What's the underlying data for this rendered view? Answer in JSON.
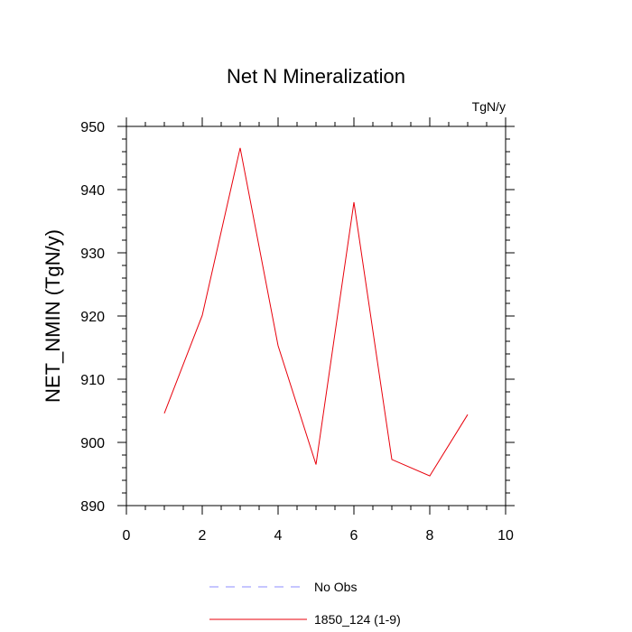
{
  "chart_data": {
    "type": "line",
    "title": "Net N Mineralization",
    "units": "TgN/y",
    "xlabel": "",
    "ylabel": "NET_NMIN  (TgN/y)",
    "xlim": [
      0,
      10
    ],
    "ylim": [
      890,
      950
    ],
    "xticks": [
      0,
      2,
      4,
      6,
      8,
      10
    ],
    "yticks": [
      890,
      900,
      910,
      920,
      930,
      940,
      950
    ],
    "grid": false,
    "legend_position": "bottom-center",
    "series": [
      {
        "name": "1850_124 (1-9)",
        "color": "#e8000b",
        "style": "solid",
        "x": [
          1,
          2,
          3,
          4,
          5,
          6,
          7,
          8,
          9
        ],
        "values": [
          904.6,
          920.1,
          946.6,
          915.3,
          896.5,
          938.0,
          897.3,
          894.7,
          904.4
        ]
      }
    ],
    "legend": [
      {
        "label": "No Obs",
        "color": "#8c8cff",
        "style": "dashed"
      },
      {
        "label": "1850_124 (1-9)",
        "color": "#e8000b",
        "style": "solid"
      }
    ]
  }
}
